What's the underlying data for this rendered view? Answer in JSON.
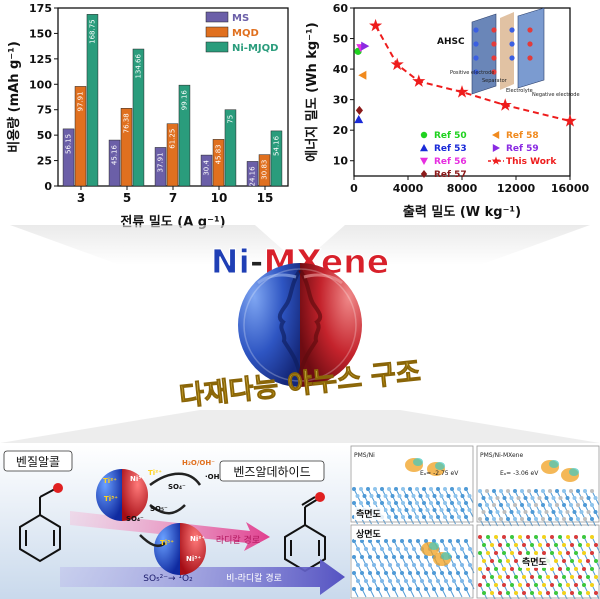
{
  "title": {
    "prefix": "Ni",
    "dash": "-",
    "rest": "MXene"
  },
  "caption": "다재다능 야누스 구조",
  "chart_data": [
    {
      "type": "bar",
      "categories": [
        "3",
        "5",
        "7",
        "10",
        "15"
      ],
      "series": [
        {
          "name": "MS",
          "color": "#6b5fa8",
          "values": [
            56.15,
            45.16,
            37.91,
            30.4,
            24.16
          ]
        },
        {
          "name": "MQD",
          "color": "#e0701f",
          "values": [
            97.91,
            76.38,
            61.25,
            45.83,
            30.83
          ]
        },
        {
          "name": "Ni-MJQD",
          "color": "#2a9c7c",
          "values": [
            168.75,
            134.66,
            99.16,
            75,
            54.16
          ]
        }
      ],
      "value_labels": [
        [
          "56.15",
          "45.16",
          "37.91",
          "30.4",
          "24.16"
        ],
        [
          "97.91",
          "76.38",
          "61.25",
          "45.83",
          "30.83"
        ],
        [
          "168.75",
          "134.66",
          "99.16",
          "75",
          "54.16"
        ]
      ],
      "yticks": [
        "0",
        "25",
        "50",
        "75",
        "100",
        "125",
        "150",
        "175"
      ],
      "ylim": [
        0,
        175
      ],
      "ylabel": "비용량 (mAh g⁻¹)",
      "xlabel": "전류 밀도 (A g⁻¹)",
      "legend": "top-right"
    },
    {
      "type": "scatter",
      "xticks": [
        "0",
        "4000",
        "8000",
        "12000",
        "16000"
      ],
      "yticks": [
        "10",
        "20",
        "30",
        "40",
        "50",
        "60"
      ],
      "xlim": [
        0,
        16000
      ],
      "ylim": [
        5,
        60
      ],
      "ylabel": "에너지 밀도 (Wh kg⁻¹)",
      "xlabel": "출력 밀도 (W kg⁻¹)",
      "series": [
        {
          "name": "Ref 50",
          "color": "#1fd21f",
          "marker": "circle",
          "points": [
            [
              300,
              45.8
            ]
          ]
        },
        {
          "name": "Ref 53",
          "color": "#1a2ad8",
          "marker": "triangle-up",
          "points": [
            [
              350,
              23.5
            ]
          ]
        },
        {
          "name": "Ref 56",
          "color": "#e62ee0",
          "marker": "triangle-down",
          "points": [
            [
              500,
              47
            ]
          ]
        },
        {
          "name": "Ref 57",
          "color": "#8b1a1a",
          "marker": "diamond",
          "points": [
            [
              400,
              26.5
            ]
          ]
        },
        {
          "name": "Ref 58",
          "color": "#f08a1e",
          "marker": "triangle-left",
          "points": [
            [
              650,
              38
            ]
          ]
        },
        {
          "name": "Ref 59",
          "color": "#8a2be2",
          "marker": "triangle-right",
          "points": [
            [
              800,
              47.5
            ]
          ]
        },
        {
          "name": "This Work",
          "color": "#ee1c1c",
          "marker": "star",
          "line": "dashed",
          "points": [
            [
              1600,
              54.2
            ],
            [
              3200,
              41.5
            ],
            [
              4800,
              36
            ],
            [
              8000,
              32.5
            ],
            [
              11200,
              28.2
            ],
            [
              16000,
              23
            ]
          ]
        }
      ],
      "inset": {
        "title": "AHSC",
        "labels": [
          "Positive electrode",
          "Separator",
          "Electrolyte",
          "Negative electrode"
        ]
      },
      "legend": "bottom-right"
    }
  ],
  "mechanism": {
    "reactant": "벤질알콜",
    "product": "벤즈알데하이드",
    "radical_path": "라디칼 경로",
    "nonradical_path": "비-라디칼 경로",
    "nonradical_formula": "SO₅²⁻→ ¹O₂",
    "species": [
      "Ti²⁺",
      "Ti³⁺",
      "Ti²⁺",
      "Ti³⁺",
      "Ni³⁺",
      "Ni²⁺",
      "Ni³⁺",
      "SO₄⁻",
      "SO₅⁻",
      "SO₄⁻",
      "H₂O/OH⁻",
      "·OH"
    ]
  },
  "dft": {
    "left_title": "PMS/Ni",
    "right_title": "PMS/Ni-MXene",
    "left_energy": "Eₐ= -2.75 eV",
    "right_energy": "Eₐ= -3.06 eV",
    "side_view": "측면도",
    "top_view": "상면도",
    "side_view2": "측면도"
  }
}
